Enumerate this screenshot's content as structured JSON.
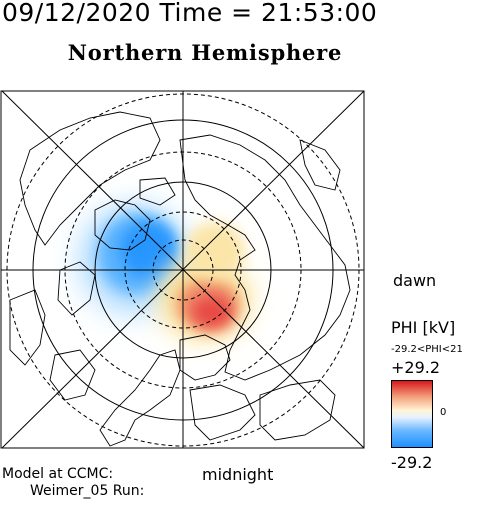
{
  "header": {
    "timestamp": "09/12/2020 Time = 21:53:00",
    "title": "Northern Hemisphere"
  },
  "map": {
    "projection": "polar",
    "pole": "north",
    "dawn_label": "dawn",
    "midnight_label": "midnight",
    "grid_lines": true,
    "coastlines": true
  },
  "colorbar": {
    "title": "PHI [kV]",
    "range_text": "-29.2<PHI<21",
    "max_label": "+29.2",
    "zero_label": "0",
    "min_label": "-29.2",
    "colors": {
      "high": "#d7191c",
      "mid": "#ffffff",
      "low": "#1e90ff"
    }
  },
  "footer": {
    "line1": "Model at CCMC:",
    "line2": "Weimer_05 Run:"
  }
}
